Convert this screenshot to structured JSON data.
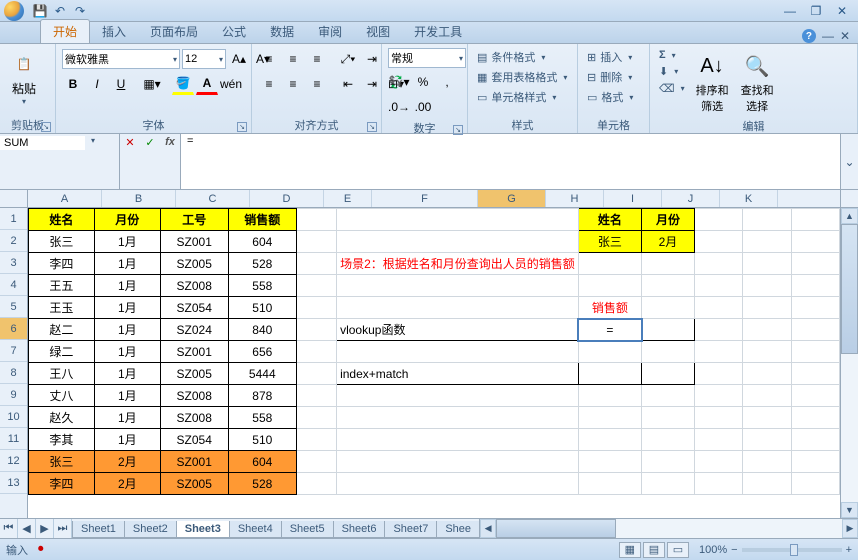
{
  "window": {
    "min": "—",
    "restore": "❐",
    "close": "✕",
    "help": "?"
  },
  "tabs": {
    "items": [
      "开始",
      "插入",
      "页面布局",
      "公式",
      "数据",
      "审阅",
      "视图",
      "开发工具"
    ],
    "active": 0
  },
  "ribbon": {
    "clipboard": {
      "label": "剪贴板",
      "paste": "粘贴"
    },
    "font": {
      "label": "字体",
      "name": "微软雅黑",
      "size": "12"
    },
    "align": {
      "label": "对齐方式"
    },
    "number": {
      "label": "数字",
      "format": "常规"
    },
    "styles": {
      "label": "样式",
      "cond": "条件格式",
      "table": "套用表格格式",
      "cell": "单元格样式"
    },
    "cells": {
      "label": "单元格",
      "insert": "插入",
      "delete": "删除",
      "format": "格式"
    },
    "editing": {
      "label": "编辑",
      "sort": "排序和\n筛选",
      "find": "查找和\n选择"
    }
  },
  "namebox": "SUM",
  "formula": "=",
  "columns": {
    "letters": [
      "A",
      "B",
      "C",
      "D",
      "E",
      "F",
      "G",
      "H",
      "I",
      "J",
      "K"
    ],
    "widths": [
      74,
      74,
      74,
      74,
      48,
      106,
      68,
      58,
      58,
      58,
      58
    ],
    "active": 6
  },
  "rows": {
    "count": 13,
    "active": 6,
    "heights": 22
  },
  "table_main": {
    "headers": [
      "姓名",
      "月份",
      "工号",
      "销售额"
    ],
    "rows": [
      [
        "张三",
        "1月",
        "SZ001",
        "604"
      ],
      [
        "李四",
        "1月",
        "SZ005",
        "528"
      ],
      [
        "王五",
        "1月",
        "SZ008",
        "558"
      ],
      [
        "王玉",
        "1月",
        "SZ054",
        "510"
      ],
      [
        "赵二",
        "1月",
        "SZ024",
        "840"
      ],
      [
        "绿二",
        "1月",
        "SZ001",
        "656"
      ],
      [
        "王八",
        "1月",
        "SZ005",
        "5444"
      ],
      [
        "丈八",
        "1月",
        "SZ008",
        "878"
      ],
      [
        "赵久",
        "1月",
        "SZ008",
        "558"
      ],
      [
        "李其",
        "1月",
        "SZ054",
        "510"
      ],
      [
        "张三",
        "2月",
        "SZ001",
        "604"
      ],
      [
        "李四",
        "2月",
        "SZ005",
        "528"
      ]
    ],
    "orange_from_row": 11
  },
  "lookup": {
    "headers": [
      "姓名",
      "月份"
    ],
    "values": [
      "张三",
      "2月"
    ],
    "note": "场景2：根据姓名和月份查询出人员的销售额",
    "result_label": "销售额",
    "method1": "vlookup函数",
    "method1_val": "=",
    "method2": "index+match"
  },
  "sheets": {
    "tabs": [
      "Sheet1",
      "Sheet2",
      "Sheet3",
      "Sheet4",
      "Sheet5",
      "Sheet6",
      "Sheet7",
      "Shee"
    ],
    "active": 2
  },
  "status": {
    "mode": "输入",
    "zoom": "100%"
  }
}
